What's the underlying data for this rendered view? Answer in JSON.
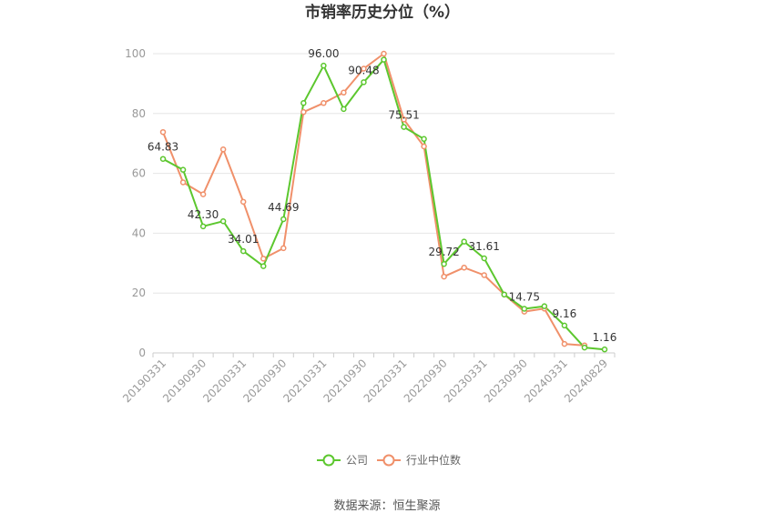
{
  "chart_data": {
    "type": "line",
    "title": "市销率历史分位（%）",
    "ylim": [
      0,
      100
    ],
    "y_ticks": [
      0,
      20,
      40,
      60,
      80,
      100
    ],
    "x_tick_labels": [
      "20190331",
      "20190930",
      "20200331",
      "20200930",
      "20210331",
      "20210930",
      "20220331",
      "20220930",
      "20230331",
      "20230930",
      "20240331",
      "20240829"
    ],
    "legend_position": "bottom",
    "grid": true,
    "series": [
      {
        "name": "公司",
        "color": "#5cc72e",
        "values": [
          64.83,
          61.2,
          42.3,
          44.0,
          34.01,
          29.0,
          44.69,
          83.5,
          96.0,
          81.5,
          90.48,
          98.0,
          75.51,
          71.5,
          29.72,
          37.2,
          31.61,
          19.5,
          14.75,
          15.6,
          9.16,
          1.8,
          1.16
        ],
        "labels": {
          "0": "64.83",
          "2": "42.30",
          "4": "34.01",
          "6": "44.69",
          "8": "96.00",
          "10": "90.48",
          "12": "75.51",
          "14": "29.72",
          "16": "31.61",
          "18": "14.75",
          "20": "9.16",
          "22": "1.16"
        }
      },
      {
        "name": "行业中位数",
        "color": "#f0906a",
        "values": [
          73.8,
          57.0,
          53.0,
          68.0,
          50.5,
          31.5,
          35.0,
          80.5,
          83.5,
          87.0,
          95.0,
          100.0,
          78.0,
          69.0,
          25.5,
          28.5,
          26.0,
          19.5,
          13.8,
          14.8,
          3.0,
          2.5
        ]
      }
    ]
  },
  "source": "数据来源：恒生聚源"
}
